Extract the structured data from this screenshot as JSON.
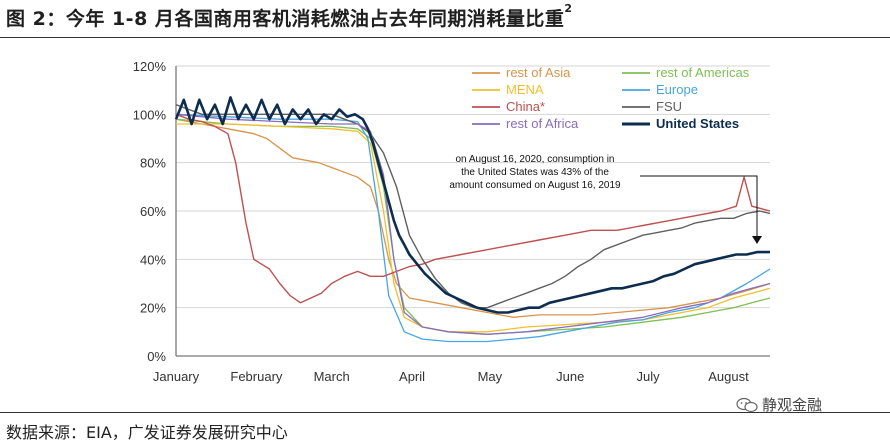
{
  "figure": {
    "title_prefix": "图 2：",
    "title": "今年 1-8 月各国商用客机消耗燃油占去年同期消耗量比重",
    "title_sup": "2",
    "source": "数据来源：EIA，广发证券发展研究中心",
    "watermark": "静观金融"
  },
  "chart_data": {
    "type": "line",
    "title": "",
    "xlabel": "",
    "ylabel": "",
    "ylim": [
      0,
      120
    ],
    "yticks": [
      "0%",
      "20%",
      "40%",
      "60%",
      "80%",
      "100%",
      "120%"
    ],
    "xlim": [
      0,
      229
    ],
    "x_months": [
      {
        "label": "January",
        "day": 0
      },
      {
        "label": "February",
        "day": 31
      },
      {
        "label": "March",
        "day": 60
      },
      {
        "label": "April",
        "day": 91
      },
      {
        "label": "May",
        "day": 121
      },
      {
        "label": "June",
        "day": 152
      },
      {
        "label": "July",
        "day": 182
      },
      {
        "label": "August",
        "day": 213
      }
    ],
    "grid": "horizontal",
    "legend_position": "top-right",
    "annotation": {
      "lines": [
        "on August 16, 2020, consumption in",
        "the United States was 43% of the",
        "amount consumed on August 16, 2019"
      ]
    },
    "series": [
      {
        "name": "rest of Asia",
        "color": "#d9944b",
        "width": 1.3,
        "points": [
          [
            0,
            98
          ],
          [
            10,
            96
          ],
          [
            20,
            94
          ],
          [
            30,
            92
          ],
          [
            35,
            90
          ],
          [
            40,
            86
          ],
          [
            45,
            82
          ],
          [
            55,
            80
          ],
          [
            60,
            78
          ],
          [
            70,
            74
          ],
          [
            75,
            70
          ],
          [
            78,
            60
          ],
          [
            82,
            40
          ],
          [
            85,
            30
          ],
          [
            90,
            24
          ],
          [
            100,
            22
          ],
          [
            110,
            20
          ],
          [
            120,
            18
          ],
          [
            130,
            16
          ],
          [
            140,
            17
          ],
          [
            150,
            17
          ],
          [
            160,
            17
          ],
          [
            170,
            18
          ],
          [
            180,
            19
          ],
          [
            190,
            20
          ],
          [
            200,
            22
          ],
          [
            210,
            24
          ],
          [
            220,
            27
          ],
          [
            229,
            30
          ]
        ]
      },
      {
        "name": "rest of Americas",
        "color": "#7fbf55",
        "width": 1.3,
        "points": [
          [
            0,
            98
          ],
          [
            20,
            96
          ],
          [
            40,
            95
          ],
          [
            60,
            95
          ],
          [
            70,
            94
          ],
          [
            75,
            90
          ],
          [
            80,
            70
          ],
          [
            84,
            40
          ],
          [
            88,
            20
          ],
          [
            95,
            12
          ],
          [
            105,
            10
          ],
          [
            120,
            9
          ],
          [
            135,
            10
          ],
          [
            150,
            11
          ],
          [
            165,
            12
          ],
          [
            180,
            14
          ],
          [
            195,
            16
          ],
          [
            205,
            18
          ],
          [
            215,
            20
          ],
          [
            222,
            22
          ],
          [
            229,
            24
          ]
        ]
      },
      {
        "name": "MENA",
        "color": "#f0c030",
        "width": 1.3,
        "points": [
          [
            0,
            96
          ],
          [
            20,
            96
          ],
          [
            40,
            95
          ],
          [
            60,
            94
          ],
          [
            70,
            93
          ],
          [
            75,
            88
          ],
          [
            80,
            60
          ],
          [
            84,
            30
          ],
          [
            88,
            16
          ],
          [
            95,
            12
          ],
          [
            105,
            10
          ],
          [
            120,
            10
          ],
          [
            135,
            12
          ],
          [
            150,
            13
          ],
          [
            165,
            14
          ],
          [
            180,
            15
          ],
          [
            195,
            18
          ],
          [
            205,
            20
          ],
          [
            215,
            24
          ],
          [
            222,
            26
          ],
          [
            229,
            28
          ]
        ]
      },
      {
        "name": "Europe",
        "color": "#48a6e0",
        "width": 1.3,
        "points": [
          [
            0,
            100
          ],
          [
            20,
            99
          ],
          [
            40,
            98
          ],
          [
            60,
            98
          ],
          [
            70,
            97
          ],
          [
            74,
            90
          ],
          [
            78,
            60
          ],
          [
            82,
            25
          ],
          [
            88,
            10
          ],
          [
            95,
            7
          ],
          [
            105,
            6
          ],
          [
            120,
            6
          ],
          [
            130,
            7
          ],
          [
            140,
            8
          ],
          [
            150,
            10
          ],
          [
            160,
            12
          ],
          [
            170,
            14
          ],
          [
            180,
            15
          ],
          [
            190,
            18
          ],
          [
            200,
            20
          ],
          [
            210,
            24
          ],
          [
            220,
            30
          ],
          [
            229,
            36
          ]
        ]
      },
      {
        "name": "China*",
        "color": "#c05050",
        "width": 1.4,
        "points": [
          [
            0,
            100
          ],
          [
            5,
            98
          ],
          [
            10,
            97
          ],
          [
            15,
            95
          ],
          [
            20,
            92
          ],
          [
            23,
            80
          ],
          [
            27,
            55
          ],
          [
            30,
            40
          ],
          [
            33,
            38
          ],
          [
            36,
            36
          ],
          [
            40,
            30
          ],
          [
            44,
            25
          ],
          [
            48,
            22
          ],
          [
            52,
            24
          ],
          [
            56,
            26
          ],
          [
            60,
            30
          ],
          [
            65,
            33
          ],
          [
            70,
            35
          ],
          [
            75,
            33
          ],
          [
            80,
            33
          ],
          [
            85,
            35
          ],
          [
            90,
            37
          ],
          [
            95,
            38
          ],
          [
            100,
            40
          ],
          [
            110,
            42
          ],
          [
            120,
            44
          ],
          [
            130,
            46
          ],
          [
            140,
            48
          ],
          [
            150,
            50
          ],
          [
            160,
            52
          ],
          [
            170,
            52
          ],
          [
            180,
            54
          ],
          [
            190,
            56
          ],
          [
            200,
            58
          ],
          [
            210,
            60
          ],
          [
            216,
            62
          ],
          [
            219,
            74
          ],
          [
            222,
            62
          ],
          [
            229,
            60
          ]
        ]
      },
      {
        "name": "FSU",
        "color": "#606060",
        "width": 1.4,
        "points": [
          [
            0,
            104
          ],
          [
            5,
            102
          ],
          [
            10,
            100
          ],
          [
            20,
            100
          ],
          [
            30,
            100
          ],
          [
            40,
            100
          ],
          [
            50,
            100
          ],
          [
            60,
            100
          ],
          [
            65,
            98
          ],
          [
            70,
            96
          ],
          [
            75,
            92
          ],
          [
            80,
            84
          ],
          [
            85,
            70
          ],
          [
            90,
            50
          ],
          [
            95,
            40
          ],
          [
            100,
            32
          ],
          [
            105,
            26
          ],
          [
            110,
            22
          ],
          [
            115,
            20
          ],
          [
            120,
            20
          ],
          [
            125,
            22
          ],
          [
            130,
            24
          ],
          [
            135,
            26
          ],
          [
            140,
            28
          ],
          [
            145,
            30
          ],
          [
            150,
            33
          ],
          [
            155,
            37
          ],
          [
            160,
            40
          ],
          [
            165,
            44
          ],
          [
            170,
            46
          ],
          [
            175,
            48
          ],
          [
            180,
            50
          ],
          [
            185,
            51
          ],
          [
            190,
            52
          ],
          [
            195,
            53
          ],
          [
            200,
            55
          ],
          [
            205,
            56
          ],
          [
            210,
            57
          ],
          [
            215,
            57
          ],
          [
            220,
            59
          ],
          [
            225,
            60
          ],
          [
            229,
            59
          ]
        ]
      },
      {
        "name": "rest of Africa",
        "color": "#8a6cc0",
        "width": 1.3,
        "points": [
          [
            0,
            100
          ],
          [
            20,
            98
          ],
          [
            40,
            97
          ],
          [
            60,
            96
          ],
          [
            70,
            96
          ],
          [
            75,
            93
          ],
          [
            80,
            75
          ],
          [
            84,
            40
          ],
          [
            88,
            18
          ],
          [
            95,
            12
          ],
          [
            105,
            10
          ],
          [
            120,
            9
          ],
          [
            135,
            10
          ],
          [
            150,
            12
          ],
          [
            165,
            14
          ],
          [
            180,
            16
          ],
          [
            195,
            20
          ],
          [
            205,
            22
          ],
          [
            215,
            26
          ],
          [
            222,
            28
          ],
          [
            229,
            30
          ]
        ]
      },
      {
        "name": "United States",
        "color": "#0d2d4f",
        "width": 2.6,
        "points": [
          [
            0,
            98
          ],
          [
            3,
            106
          ],
          [
            6,
            96
          ],
          [
            9,
            106
          ],
          [
            12,
            98
          ],
          [
            15,
            104
          ],
          [
            18,
            96
          ],
          [
            21,
            107
          ],
          [
            24,
            98
          ],
          [
            27,
            104
          ],
          [
            30,
            98
          ],
          [
            33,
            106
          ],
          [
            36,
            98
          ],
          [
            39,
            104
          ],
          [
            42,
            96
          ],
          [
            45,
            102
          ],
          [
            48,
            98
          ],
          [
            51,
            102
          ],
          [
            54,
            96
          ],
          [
            57,
            100
          ],
          [
            60,
            98
          ],
          [
            63,
            102
          ],
          [
            66,
            99
          ],
          [
            69,
            100
          ],
          [
            72,
            98
          ],
          [
            74,
            94
          ],
          [
            76,
            88
          ],
          [
            78,
            80
          ],
          [
            80,
            72
          ],
          [
            82,
            64
          ],
          [
            84,
            56
          ],
          [
            86,
            50
          ],
          [
            88,
            46
          ],
          [
            90,
            42
          ],
          [
            93,
            38
          ],
          [
            96,
            34
          ],
          [
            100,
            30
          ],
          [
            104,
            26
          ],
          [
            108,
            24
          ],
          [
            112,
            22
          ],
          [
            116,
            20
          ],
          [
            120,
            19
          ],
          [
            124,
            18
          ],
          [
            128,
            18
          ],
          [
            132,
            19
          ],
          [
            136,
            20
          ],
          [
            140,
            20
          ],
          [
            144,
            22
          ],
          [
            148,
            23
          ],
          [
            152,
            24
          ],
          [
            156,
            25
          ],
          [
            160,
            26
          ],
          [
            164,
            27
          ],
          [
            168,
            28
          ],
          [
            172,
            28
          ],
          [
            176,
            29
          ],
          [
            180,
            30
          ],
          [
            184,
            31
          ],
          [
            188,
            33
          ],
          [
            192,
            34
          ],
          [
            196,
            36
          ],
          [
            200,
            38
          ],
          [
            204,
            39
          ],
          [
            208,
            40
          ],
          [
            212,
            41
          ],
          [
            216,
            42
          ],
          [
            220,
            42
          ],
          [
            224,
            43
          ],
          [
            229,
            43
          ]
        ]
      }
    ]
  }
}
